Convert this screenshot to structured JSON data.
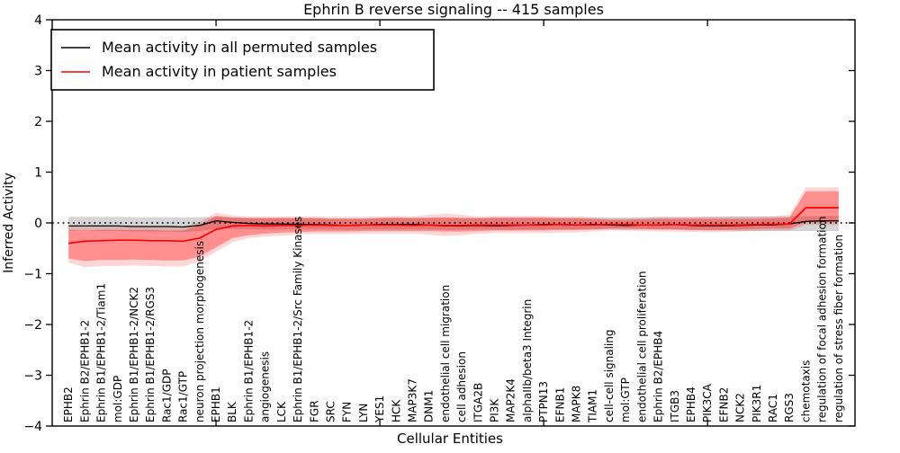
{
  "title": "Ephrin B reverse signaling -- 415 samples",
  "axes": {
    "xlabel": "Cellular Entities",
    "ylabel": "Inferred Activity",
    "ytick_labels": [
      "4",
      "3",
      "2",
      "1",
      "0",
      "−1",
      "−2",
      "−3",
      "−4"
    ]
  },
  "legend": {
    "items": [
      {
        "label": "Mean activity in all permuted samples",
        "color": "#000000"
      },
      {
        "label": "Mean activity in patient samples",
        "color": "#ff0000"
      }
    ]
  },
  "chart_data": {
    "type": "line",
    "title": "Ephrin B reverse signaling -- 415 samples",
    "xlabel": "Cellular Entities",
    "ylabel": "Inferred Activity",
    "ylim": [
      -4,
      4
    ],
    "yticks": [
      4,
      3,
      2,
      1,
      0,
      -1,
      -2,
      -3,
      -4
    ],
    "grid": false,
    "legend_position": "upper left",
    "zero_line": {
      "value": 0,
      "style": "dotted",
      "color": "#000000"
    },
    "categories": [
      "EPHB2",
      "Ephrin B2/EPHB1-2",
      "Ephrin B1/EPHB1-2/Tiam1",
      "mol:GDP",
      "Ephrin B1/EPHB1-2/NCK2",
      "Ephrin B1/EPHB1-2/RGS3",
      "Rac1/GDP",
      "Rac1/GTP",
      "neuron projection morphogenesis",
      "EPHB1",
      "BLK",
      "Ephrin B1/EPHB1-2",
      "angiogenesis",
      "LCK",
      "Ephrin B1/EPHB1-2/Src Family Kinases",
      "FGR",
      "SRC",
      "FYN",
      "LYN",
      "YES1",
      "HCK",
      "MAP3K7",
      "DNM1",
      "endothelial cell migration",
      "cell adhesion",
      "ITGA2B",
      "PI3K",
      "MAP2K4",
      "alphaIIb/beta3 Integrin",
      "PTPN13",
      "EFNB1",
      "MAPK8",
      "TIAM1",
      "cell-cell signaling",
      "mol:GTP",
      "endothelial cell proliferation",
      "Ephrin B2/EPHB4",
      "ITGB3",
      "EPHB4",
      "PIK3CA",
      "EFNB2",
      "NCK2",
      "PIK3R1",
      "RAC1",
      "RGS3",
      "chemotaxis",
      "regulation of focal adhesion formation",
      "regulation of stress fiber formation"
    ],
    "series": [
      {
        "name": "Mean activity in all permuted samples",
        "color": "#000000",
        "values": [
          -0.06,
          -0.06,
          -0.06,
          -0.06,
          -0.07,
          -0.07,
          -0.07,
          -0.08,
          -0.05,
          0.04,
          0.01,
          -0.01,
          -0.02,
          -0.02,
          -0.03,
          -0.03,
          -0.04,
          -0.05,
          -0.04,
          -0.03,
          -0.03,
          -0.03,
          -0.04,
          -0.06,
          -0.06,
          -0.05,
          -0.06,
          -0.05,
          -0.04,
          -0.03,
          -0.03,
          -0.04,
          -0.03,
          -0.04,
          -0.05,
          -0.04,
          -0.04,
          -0.03,
          -0.05,
          -0.06,
          -0.06,
          -0.05,
          -0.04,
          -0.04,
          -0.02,
          0.03,
          0.04,
          0.04
        ],
        "band": {
          "color": "#888888",
          "opacity": 0.35,
          "upper": [
            0.12,
            0.12,
            0.12,
            0.12,
            0.11,
            0.11,
            0.11,
            0.1,
            0.11,
            0.12,
            0.11,
            0.1,
            0.1,
            0.1,
            0.1,
            0.1,
            0.09,
            0.09,
            0.09,
            0.1,
            0.1,
            0.1,
            0.1,
            0.09,
            0.09,
            0.1,
            0.1,
            0.1,
            0.1,
            0.1,
            0.1,
            0.1,
            0.1,
            0.1,
            0.1,
            0.1,
            0.11,
            0.11,
            0.11,
            0.12,
            0.12,
            0.13,
            0.13,
            0.13,
            0.13,
            0.13,
            0.14,
            0.14
          ],
          "lower": [
            -0.16,
            -0.16,
            -0.16,
            -0.16,
            -0.17,
            -0.17,
            -0.17,
            -0.18,
            -0.16,
            -0.12,
            -0.12,
            -0.12,
            -0.13,
            -0.13,
            -0.13,
            -0.13,
            -0.13,
            -0.14,
            -0.13,
            -0.13,
            -0.13,
            -0.13,
            -0.13,
            -0.14,
            -0.14,
            -0.13,
            -0.13,
            -0.14,
            -0.13,
            -0.13,
            -0.13,
            -0.13,
            -0.13,
            -0.13,
            -0.14,
            -0.13,
            -0.13,
            -0.13,
            -0.14,
            -0.15,
            -0.15,
            -0.16,
            -0.16,
            -0.16,
            -0.16,
            -0.16,
            -0.16,
            -0.16
          ]
        }
      },
      {
        "name": "Mean activity in patient samples",
        "color": "#ff0000",
        "values": [
          -0.4,
          -0.36,
          -0.35,
          -0.34,
          -0.34,
          -0.35,
          -0.35,
          -0.36,
          -0.3,
          -0.13,
          -0.06,
          -0.05,
          -0.06,
          -0.05,
          -0.05,
          -0.04,
          -0.05,
          -0.05,
          -0.04,
          -0.04,
          -0.04,
          -0.05,
          -0.04,
          -0.05,
          -0.05,
          -0.04,
          -0.04,
          -0.04,
          -0.04,
          -0.04,
          -0.03,
          -0.04,
          -0.04,
          -0.03,
          -0.03,
          -0.04,
          -0.04,
          -0.03,
          -0.04,
          -0.04,
          -0.04,
          -0.04,
          -0.03,
          -0.03,
          -0.02,
          0.3,
          0.3,
          0.3
        ],
        "inner_band": {
          "color": "#ff0000",
          "opacity": 0.33,
          "upper": [
            -0.14,
            -0.15,
            -0.14,
            -0.14,
            -0.14,
            -0.14,
            -0.15,
            -0.15,
            -0.05,
            0.14,
            0.1,
            0.09,
            0.09,
            0.09,
            0.09,
            0.09,
            0.08,
            0.08,
            0.08,
            0.09,
            0.1,
            0.09,
            0.1,
            0.11,
            0.1,
            0.09,
            0.1,
            0.1,
            0.1,
            0.1,
            0.09,
            0.09,
            0.08,
            0.06,
            0.06,
            0.07,
            0.08,
            0.08,
            0.08,
            0.08,
            0.08,
            0.08,
            0.08,
            0.09,
            0.1,
            0.62,
            0.62,
            0.62
          ],
          "lower": [
            -0.7,
            -0.75,
            -0.73,
            -0.73,
            -0.72,
            -0.73,
            -0.74,
            -0.74,
            -0.66,
            -0.48,
            -0.3,
            -0.24,
            -0.21,
            -0.19,
            -0.18,
            -0.17,
            -0.17,
            -0.17,
            -0.16,
            -0.16,
            -0.16,
            -0.16,
            -0.16,
            -0.17,
            -0.17,
            -0.16,
            -0.15,
            -0.15,
            -0.15,
            -0.15,
            -0.14,
            -0.14,
            -0.13,
            -0.11,
            -0.11,
            -0.12,
            -0.13,
            -0.13,
            -0.14,
            -0.14,
            -0.14,
            -0.13,
            -0.12,
            -0.11,
            -0.11,
            0.01,
            0.01,
            0.01
          ]
        },
        "outer_band": {
          "color": "#ff0000",
          "opacity": 0.16,
          "upper": [
            -0.06,
            -0.08,
            -0.07,
            -0.07,
            -0.07,
            -0.07,
            -0.08,
            -0.08,
            0.02,
            0.2,
            0.15,
            0.13,
            0.13,
            0.13,
            0.13,
            0.13,
            0.12,
            0.12,
            0.12,
            0.13,
            0.14,
            0.13,
            0.16,
            0.18,
            0.16,
            0.13,
            0.14,
            0.14,
            0.14,
            0.14,
            0.13,
            0.13,
            0.11,
            0.09,
            0.09,
            0.1,
            0.12,
            0.12,
            0.12,
            0.12,
            0.12,
            0.12,
            0.12,
            0.13,
            0.16,
            0.7,
            0.7,
            0.7
          ],
          "lower": [
            -0.78,
            -0.87,
            -0.85,
            -0.85,
            -0.84,
            -0.85,
            -0.86,
            -0.86,
            -0.76,
            -0.57,
            -0.38,
            -0.3,
            -0.27,
            -0.25,
            -0.23,
            -0.22,
            -0.22,
            -0.22,
            -0.21,
            -0.21,
            -0.21,
            -0.21,
            -0.23,
            -0.26,
            -0.24,
            -0.21,
            -0.2,
            -0.2,
            -0.2,
            -0.2,
            -0.19,
            -0.19,
            -0.17,
            -0.15,
            -0.15,
            -0.16,
            -0.17,
            -0.17,
            -0.18,
            -0.18,
            -0.18,
            -0.17,
            -0.16,
            -0.15,
            -0.15,
            -0.04,
            -0.04,
            -0.04
          ]
        }
      }
    ]
  }
}
